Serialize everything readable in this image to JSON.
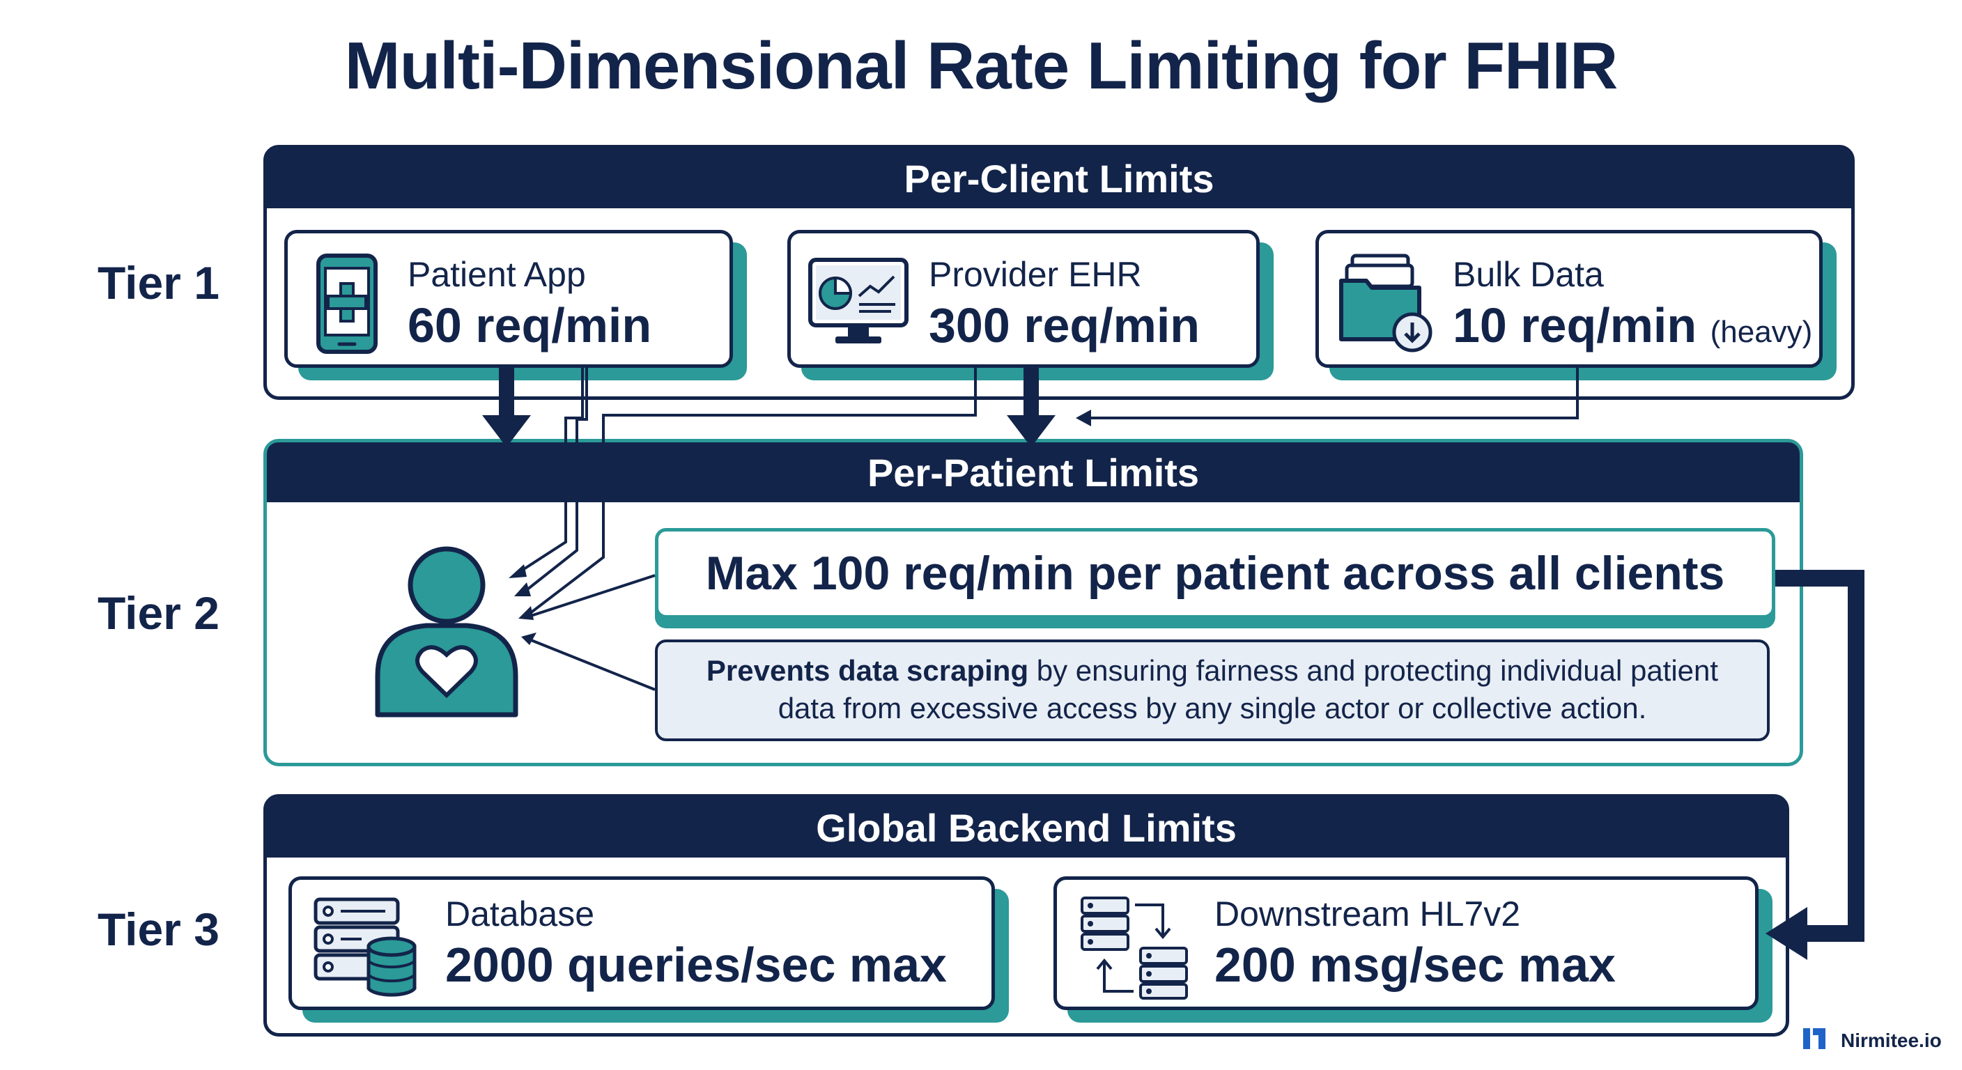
{
  "title": "Multi-Dimensional Rate Limiting for FHIR",
  "tiers": [
    {
      "label": "Tier 1"
    },
    {
      "label": "Tier 2"
    },
    {
      "label": "Tier 3"
    }
  ],
  "per_client": {
    "header": "Per-Client Limits",
    "cards": [
      {
        "name": "Patient App",
        "value": "60 req/min",
        "icon": "mobile-medical-icon"
      },
      {
        "name": "Provider EHR",
        "value": "300 req/min",
        "icon": "monitor-dashboard-icon"
      },
      {
        "name": "Bulk Data",
        "value": "10 req/min",
        "note": "(heavy)",
        "icon": "folder-download-icon"
      }
    ]
  },
  "per_patient": {
    "header": "Per-Patient Limits",
    "main_limit": "Max 100 req/min per patient across all clients",
    "note_bold": "Prevents data scraping",
    "note_rest_line1": " by ensuring fairness and protecting individual patient",
    "note_line2": "data from excessive access by any single actor or collective action.",
    "icon": "patient-heart-icon"
  },
  "global_backend": {
    "header": "Global Backend Limits",
    "cards": [
      {
        "name": "Database",
        "value": "2000 queries/sec max",
        "icon": "server-database-icon"
      },
      {
        "name": "Downstream HL7v2",
        "value": "200 msg/sec max",
        "icon": "server-sync-icon"
      }
    ]
  },
  "logo": {
    "text": "Nirmitee.io",
    "icon": "nirmitee-logo-icon"
  },
  "colors": {
    "navy": "#13244a",
    "teal": "#2b9a98",
    "note_bg": "#e8eef5"
  }
}
